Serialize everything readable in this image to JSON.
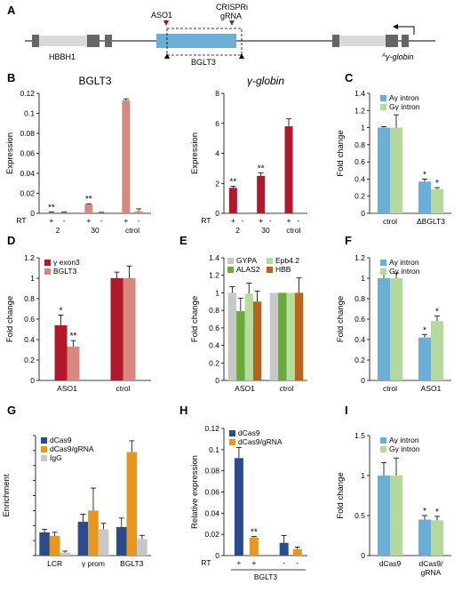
{
  "panel_letters": [
    "A",
    "B",
    "C",
    "D",
    "E",
    "F",
    "G",
    "H",
    "I"
  ],
  "diagram": {
    "aso_label": "ASO1",
    "crispri_label_1": "CRISPRi",
    "crispri_label_2": "gRNA",
    "hbbh1_label": "HBBH1",
    "bglt3_label": "BGLT3",
    "ag_sup": "A",
    "ag_label": "γ-globin",
    "colors": {
      "exon": "#666666",
      "gene": "#d9d9d9",
      "bglt3": "#6baed6",
      "aso": "#c00000",
      "crispri": "#2b4c8c"
    }
  },
  "chart_data": [
    {
      "panel": "B1",
      "type": "bar",
      "title": "BGLT3",
      "ylabel": "Expression",
      "ylim": [
        0,
        0.12
      ],
      "yticks": [
        "0",
        "0.02",
        "0.04",
        "0.06",
        "0.08",
        "0.1",
        "0.12"
      ],
      "row_label": "RT",
      "rt_signs": [
        "+",
        "-",
        "+",
        "-",
        "+",
        "-"
      ],
      "group_labels": [
        "2",
        "30",
        "ctrol"
      ],
      "values": [
        0.001,
        0.001,
        0.009,
        0.0008,
        0.113,
        0.002
      ],
      "errors": [
        0.0003,
        0.0002,
        0.0006,
        0.0002,
        0.0015,
        0.0025
      ],
      "colors": [
        "#d98880",
        "#d98880",
        "#d98880",
        "#d98880",
        "#d98880",
        "#d98880"
      ],
      "stars": [
        "**",
        "",
        "**",
        "",
        "",
        ""
      ]
    },
    {
      "panel": "B2",
      "type": "bar",
      "title": "γ-globin",
      "ylabel": "Expression",
      "ylim": [
        0,
        8
      ],
      "yticks": [
        "0",
        "2",
        "4",
        "6",
        "8"
      ],
      "row_label": "RT",
      "rt_signs": [
        "+",
        "-",
        "+",
        "-",
        "+",
        "-"
      ],
      "group_labels": [
        "2",
        "30",
        "ctrol"
      ],
      "values": [
        1.7,
        0.01,
        2.5,
        0.01,
        5.8,
        0.01
      ],
      "errors": [
        0.1,
        0,
        0.2,
        0,
        0.5,
        0
      ],
      "colors": [
        "#b2182b",
        "#b2182b",
        "#b2182b",
        "#b2182b",
        "#b2182b",
        "#b2182b"
      ],
      "stars": [
        "**",
        "",
        "**",
        "",
        "",
        ""
      ]
    },
    {
      "panel": "C",
      "type": "bar",
      "ylabel": "Fold change",
      "ylim": [
        0,
        1.4
      ],
      "yticks": [
        "0",
        "0.2",
        "0.4",
        "0.6",
        "0.8",
        "1",
        "1.2",
        "1.4"
      ],
      "categories": [
        "ctrol",
        "ΔBGLT3"
      ],
      "series": [
        {
          "name": "Aγ intron",
          "color": "#6baed6",
          "values": [
            1.0,
            0.37
          ],
          "errors": [
            0.01,
            0.03
          ],
          "stars": [
            "",
            "*"
          ]
        },
        {
          "name": "Gγ intron",
          "color": "#b5d99c",
          "values": [
            1.0,
            0.28
          ],
          "errors": [
            0.15,
            0.02
          ],
          "stars": [
            "",
            "*"
          ]
        }
      ]
    },
    {
      "panel": "D",
      "type": "bar",
      "ylabel": "Fold change",
      "ylim": [
        0,
        1.2
      ],
      "yticks": [
        "0",
        "0.2",
        "0.4",
        "0.6",
        "0.8",
        "1",
        "1.2"
      ],
      "categories": [
        "ASO1",
        "ctrol"
      ],
      "series": [
        {
          "name": "γ exon3",
          "color": "#b2182b",
          "values": [
            0.54,
            1.0
          ],
          "errors": [
            0.1,
            0.06
          ],
          "stars": [
            "*",
            ""
          ]
        },
        {
          "name": "BGLT3",
          "color": "#d98880",
          "values": [
            0.33,
            1.0
          ],
          "errors": [
            0.06,
            0.12
          ],
          "stars": [
            "**",
            ""
          ]
        }
      ]
    },
    {
      "panel": "E",
      "type": "bar",
      "ylabel": "Fold change",
      "ylim": [
        0,
        1.4
      ],
      "yticks": [
        "0",
        "0.2",
        "0.4",
        "0.6",
        "0.8",
        "1",
        "1.2",
        "1.4"
      ],
      "categories": [
        "ASO1",
        "ctrol"
      ],
      "series": [
        {
          "name": "GYPA",
          "color": "#c8c8c8",
          "values": [
            1.0,
            1.0
          ],
          "errors": [
            0.07,
            0.0
          ],
          "stars": [
            "",
            ""
          ]
        },
        {
          "name": "ALAS2",
          "color": "#6aaa3a",
          "values": [
            0.79,
            1.0
          ],
          "errors": [
            0.15,
            0.0
          ],
          "stars": [
            "",
            ""
          ]
        },
        {
          "name": "Epb4.2",
          "color": "#b8dc9c",
          "values": [
            0.99,
            1.0
          ],
          "errors": [
            0.12,
            0.0
          ],
          "stars": [
            "",
            ""
          ]
        },
        {
          "name": "HBB",
          "color": "#b5651d",
          "values": [
            0.9,
            1.0
          ],
          "errors": [
            0.12,
            0.17
          ],
          "stars": [
            "",
            ""
          ]
        }
      ]
    },
    {
      "panel": "F",
      "type": "bar",
      "ylabel": "Fold change",
      "ylim": [
        0,
        1.2
      ],
      "yticks": [
        "0",
        "0.2",
        "0.4",
        "0.6",
        "0.8",
        "1",
        "1.2"
      ],
      "categories": [
        "ctrol",
        "ASO1"
      ],
      "series": [
        {
          "name": "Aγ intron",
          "color": "#6baed6",
          "values": [
            1.0,
            0.42
          ],
          "errors": [
            0.05,
            0.03
          ],
          "stars": [
            "",
            "*"
          ]
        },
        {
          "name": "Gγ intron",
          "color": "#b5d99c",
          "values": [
            1.0,
            0.58
          ],
          "errors": [
            0.05,
            0.05
          ],
          "stars": [
            "",
            "*"
          ]
        }
      ]
    },
    {
      "panel": "G",
      "type": "bar",
      "ylabel": "Enrichment",
      "ylim": [
        0,
        0.16
      ],
      "yticks": [
        "",
        "",
        "",
        "",
        "",
        "",
        "",
        "",
        ""
      ],
      "categories": [
        "LCR",
        "γ prom",
        "BGLT3"
      ],
      "series": [
        {
          "name": "dCas9",
          "color": "#2b4c8c",
          "values": [
            0.031,
            0.045,
            0.038
          ],
          "errors": [
            0.004,
            0.01,
            0.012
          ],
          "stars": [
            "",
            "",
            ""
          ]
        },
        {
          "name": "dCas9/gRNA",
          "color": "#e8961e",
          "values": [
            0.026,
            0.06,
            0.138
          ],
          "errors": [
            0.005,
            0.03,
            0.015
          ],
          "stars": [
            "",
            "",
            ""
          ]
        },
        {
          "name": "IgG",
          "color": "#c8c8c8",
          "values": [
            0.004,
            0.035,
            0.022
          ],
          "errors": [
            0.002,
            0.008,
            0.005
          ],
          "stars": [
            "",
            "",
            ""
          ]
        }
      ]
    },
    {
      "panel": "H",
      "type": "bar",
      "ylabel": "Relative expression",
      "ylim": [
        0,
        0.12
      ],
      "yticks": [
        "0",
        "0.02",
        "0.04",
        "0.06",
        "0.08",
        "0.1",
        "0.12"
      ],
      "row_label": "RT",
      "rt_signs": [
        "+",
        "+",
        "-",
        "-"
      ],
      "group_labels": [
        "BGLT3"
      ],
      "series_legend": [
        {
          "name": "dCas9",
          "color": "#2b4c8c"
        },
        {
          "name": "dCas9/gRNA",
          "color": "#e8961e"
        }
      ],
      "values": [
        0.092,
        0.017,
        0.012,
        0.006
      ],
      "errors": [
        0.01,
        0.001,
        0.007,
        0.002
      ],
      "colors": [
        "#2b4c8c",
        "#e8961e",
        "#2b4c8c",
        "#e8961e"
      ],
      "stars": [
        "",
        "**",
        "",
        ""
      ]
    },
    {
      "panel": "I",
      "type": "bar",
      "ylabel": "Fold change",
      "ylim": [
        0,
        1.5
      ],
      "yticks": [
        "0",
        "0.5",
        "1",
        "1.5"
      ],
      "categories": [
        "dCas9",
        "dCas9/\ngRNA"
      ],
      "series": [
        {
          "name": "Aγ intron",
          "color": "#6baed6",
          "values": [
            1.0,
            0.45
          ],
          "errors": [
            0.16,
            0.05
          ],
          "stars": [
            "",
            "*"
          ]
        },
        {
          "name": "Gγ intron",
          "color": "#b5d99c",
          "values": [
            1.0,
            0.44
          ],
          "errors": [
            0.22,
            0.05
          ],
          "stars": [
            "",
            "*"
          ]
        }
      ]
    }
  ]
}
